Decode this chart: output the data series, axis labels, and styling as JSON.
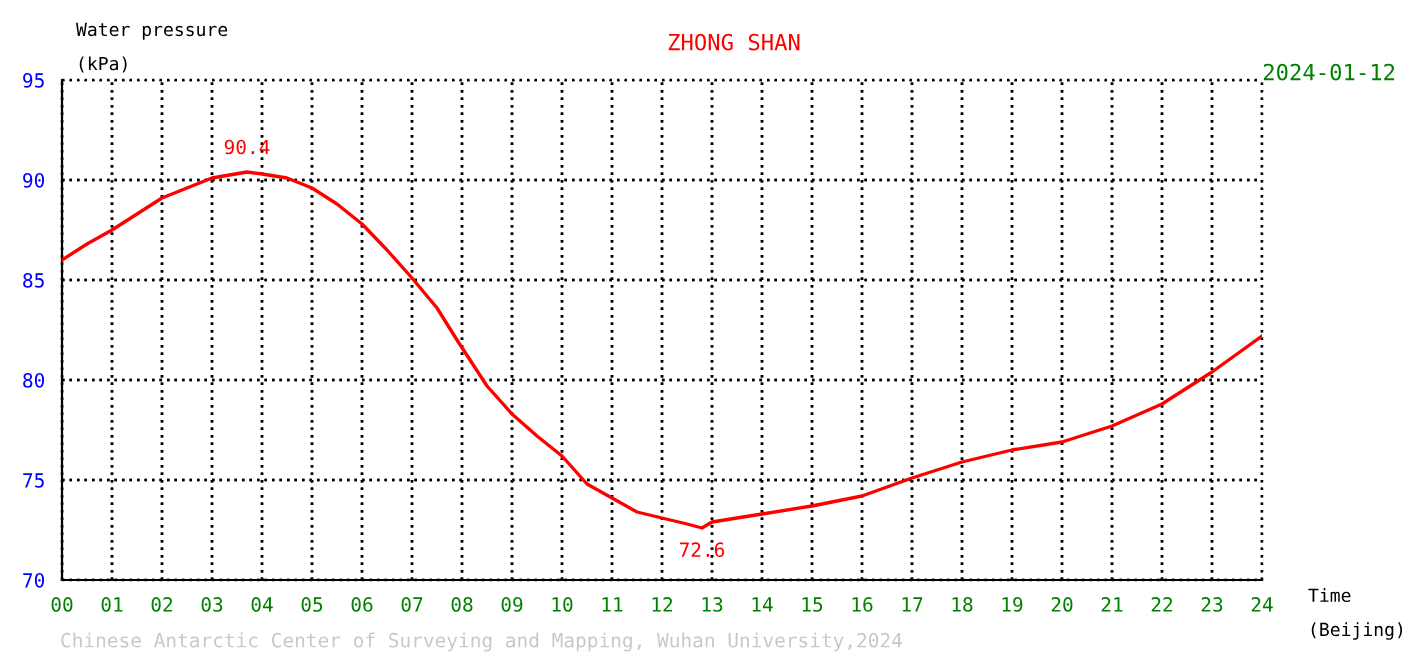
{
  "chart_data": {
    "type": "line",
    "title": "ZHONG SHAN",
    "subtitle": "2024-01-12",
    "xlabel": "Time\n(Beijing)",
    "ylabel": "Water pressure\n(kPa)",
    "annotations": [
      {
        "text": "90.4",
        "x": 3.7,
        "y": 90.4
      },
      {
        "text": "72.6",
        "x": 12.8,
        "y": 72.6
      },
      "Chinese Antarctic Center of Surveying and Mapping, Wuhan University,2024"
    ],
    "series": [
      {
        "color": "#ff0000",
        "x": [
          0,
          0.5,
          1,
          2,
          3,
          3.7,
          4,
          4.5,
          5,
          5.5,
          6,
          6.5,
          7,
          7.5,
          7.9,
          8.5,
          9,
          9.5,
          10,
          10.5,
          11,
          11.5,
          12,
          12.5,
          12.8,
          13,
          14,
          15,
          16,
          17,
          18,
          19,
          20,
          21,
          22,
          23,
          24
        ],
        "values": [
          86.0,
          86.8,
          87.5,
          89.1,
          90.1,
          90.4,
          90.3,
          90.1,
          89.6,
          88.8,
          87.8,
          86.5,
          85.1,
          83.6,
          82.0,
          79.7,
          78.3,
          77.2,
          76.2,
          74.8,
          74.1,
          73.4,
          73.1,
          72.8,
          72.6,
          72.9,
          73.3,
          73.7,
          74.2,
          75.1,
          75.9,
          76.5,
          76.9,
          77.7,
          78.8,
          80.4,
          82.2
        ]
      }
    ],
    "xlim": [
      0,
      24
    ],
    "ylim": [
      70,
      95
    ],
    "xticks": [
      {
        "value": 0,
        "label": "00"
      },
      {
        "value": 1,
        "label": "01"
      },
      {
        "value": 2,
        "label": "02"
      },
      {
        "value": 3,
        "label": "03"
      },
      {
        "value": 4,
        "label": "04"
      },
      {
        "value": 5,
        "label": "05"
      },
      {
        "value": 6,
        "label": "06"
      },
      {
        "value": 7,
        "label": "07"
      },
      {
        "value": 8,
        "label": "08"
      },
      {
        "value": 9,
        "label": "09"
      },
      {
        "value": 10,
        "label": "10"
      },
      {
        "value": 11,
        "label": "11"
      },
      {
        "value": 12,
        "label": "12"
      },
      {
        "value": 13,
        "label": "13"
      },
      {
        "value": 14,
        "label": "14"
      },
      {
        "value": 15,
        "label": "15"
      },
      {
        "value": 16,
        "label": "16"
      },
      {
        "value": 17,
        "label": "17"
      },
      {
        "value": 18,
        "label": "18"
      },
      {
        "value": 19,
        "label": "19"
      },
      {
        "value": 20,
        "label": "20"
      },
      {
        "value": 21,
        "label": "21"
      },
      {
        "value": 22,
        "label": "22"
      },
      {
        "value": 23,
        "label": "23"
      },
      {
        "value": 24,
        "label": "24"
      }
    ],
    "yticks": [
      70,
      75,
      80,
      85,
      90,
      95
    ],
    "grid": true,
    "line_style": "solid",
    "marker": "none"
  }
}
